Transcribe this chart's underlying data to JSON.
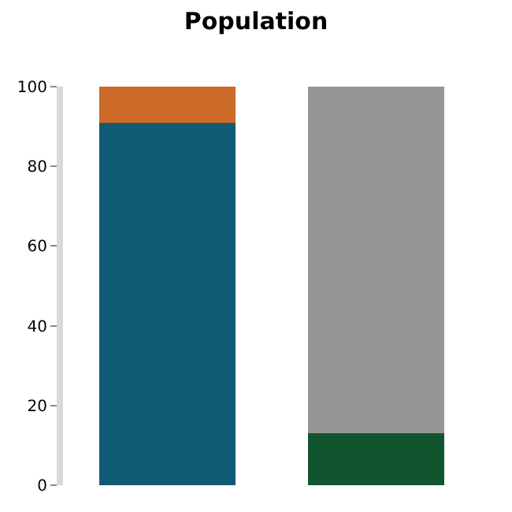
{
  "chart_data": {
    "type": "bar",
    "title": "Population",
    "categories": [
      null,
      null
    ],
    "stacked": true,
    "series": [
      {
        "colors": [
          "#115a73",
          "#11552e"
        ],
        "values": [
          91,
          13
        ]
      },
      {
        "colors": [
          "#cc6a28",
          "#969696"
        ],
        "values": [
          9,
          87
        ]
      }
    ],
    "ylim": [
      0,
      100
    ],
    "yticks": [
      0,
      20,
      40,
      60,
      80,
      100
    ]
  }
}
